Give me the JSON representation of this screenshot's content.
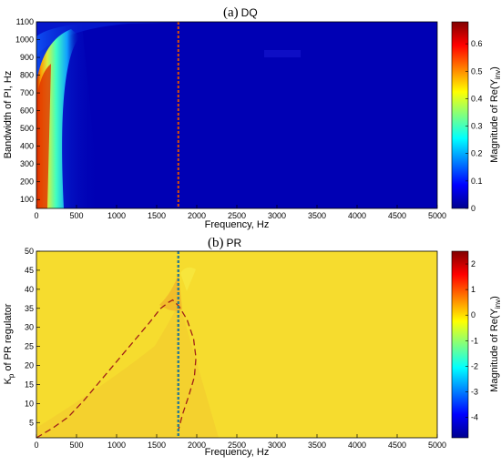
{
  "chart_data": [
    {
      "type": "heatmap",
      "title_prefix": "(a)",
      "title": "DQ",
      "xlabel": "Frequency, Hz",
      "ylabel": "Bandwidth of PI, Hz",
      "xlim": [
        0,
        5000
      ],
      "ylim": [
        50,
        1100
      ],
      "xticks": [
        0,
        500,
        1000,
        1500,
        2000,
        2500,
        3000,
        3500,
        4000,
        4500,
        5000
      ],
      "yticks": [
        100,
        200,
        300,
        400,
        500,
        600,
        700,
        800,
        900,
        1000,
        1100
      ],
      "colorbar": {
        "label": "Magnitude of Re(Y",
        "label_sub": "inv",
        "label_end": ")",
        "range": [
          0,
          0.68
        ],
        "ticks": [
          "0",
          "0.1",
          "0.2",
          "0.3",
          "0.4",
          "0.5",
          "0.6"
        ],
        "tick_values": [
          0,
          0.1,
          0.2,
          0.3,
          0.4,
          0.5,
          0.6
        ]
      },
      "vertical_marker_x": 1770,
      "dominant_color": "#0000b4",
      "grid": false
    },
    {
      "type": "heatmap",
      "title_prefix": "(b)",
      "title": "PR",
      "xlabel": "Frequency, Hz",
      "ylabel": "K",
      "ylabel_sub": "p",
      "ylabel_rest": " of PR regulator",
      "xlim": [
        0,
        5000
      ],
      "ylim": [
        1,
        50
      ],
      "xticks": [
        0,
        500,
        1000,
        1500,
        2000,
        2500,
        3000,
        3500,
        4000,
        4500,
        5000
      ],
      "yticks": [
        5,
        10,
        15,
        20,
        25,
        30,
        35,
        40,
        45,
        50
      ],
      "colorbar": {
        "label": "Magnitude of Re(Y",
        "label_sub": "inv",
        "label_end": ")",
        "range": [
          -4.8,
          2.5
        ],
        "ticks": [
          "2",
          "1",
          "0",
          "-1",
          "-2",
          "-3",
          "-4"
        ],
        "tick_values": [
          2,
          1,
          0,
          -1,
          -2,
          -3,
          -4
        ]
      },
      "vertical_marker_x": 1770,
      "boundary_curve": {
        "x": [
          0,
          200,
          400,
          600,
          800,
          1000,
          1200,
          1400,
          1550,
          1650,
          1700,
          1780,
          1880,
          1960,
          1990,
          1970,
          1900,
          1820,
          1770
        ],
        "y": [
          1,
          3.5,
          6.5,
          11,
          16,
          21,
          26,
          31,
          35,
          36.6,
          37.2,
          35.5,
          32,
          27,
          22,
          17,
          12,
          7,
          3
        ]
      },
      "dominant_color": "#f6dc2e",
      "grid": false
    }
  ]
}
